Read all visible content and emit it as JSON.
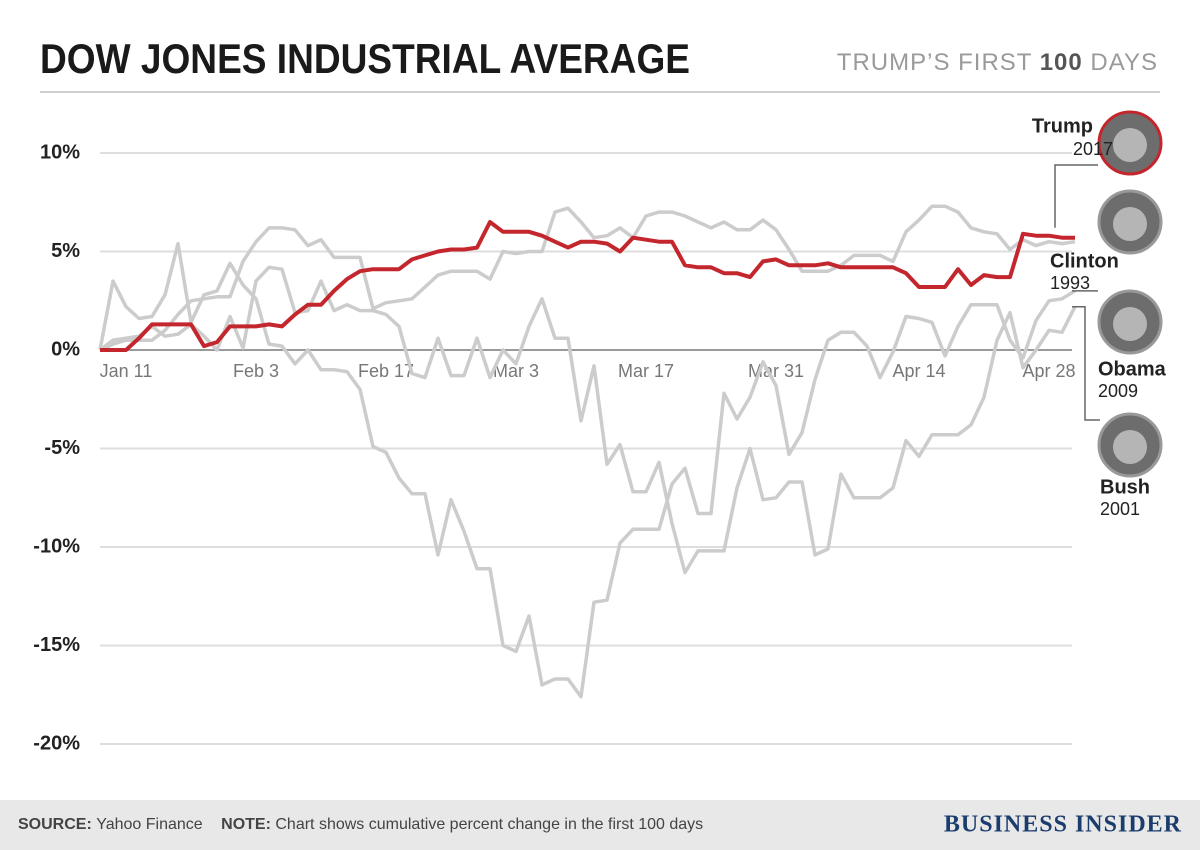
{
  "chart_data": {
    "type": "line",
    "title": "DOW JONES INDUSTRIAL AVERAGE",
    "subtitle": [
      "TRUMP’S FIRST",
      "100",
      "DAYS"
    ],
    "categories": [
      null,
      null,
      "Jan 11",
      null,
      null,
      null,
      null,
      null,
      null,
      null,
      null,
      null,
      "Feb 3",
      null,
      null,
      null,
      null,
      null,
      null,
      null,
      null,
      null,
      "Feb 17",
      null,
      null,
      null,
      null,
      null,
      null,
      null,
      null,
      null,
      "Mar 3",
      null,
      null,
      null,
      null,
      null,
      null,
      null,
      null,
      null,
      "Mar 17",
      null,
      null,
      null,
      null,
      null,
      null,
      null,
      null,
      null,
      "Mar 31",
      null,
      null,
      null,
      null,
      null,
      null,
      null,
      null,
      null,
      null,
      "Apr 14",
      null,
      null,
      null,
      null,
      null,
      null,
      null,
      null,
      null,
      "Apr 28",
      null,
      null
    ],
    "ylim": [
      -21,
      12
    ],
    "yticks": [
      {
        "value": -20,
        "label": "-20%"
      },
      {
        "value": -15,
        "label": "-15%"
      },
      {
        "value": -10,
        "label": "-10%"
      },
      {
        "value": -5,
        "label": "-5%"
      },
      {
        "value": 0,
        "label": "0%"
      },
      {
        "value": 5,
        "label": "5%"
      },
      {
        "value": 10,
        "label": "10%"
      }
    ],
    "grid": true,
    "series": [
      {
        "name": "Clinton",
        "year": "1993",
        "color": "#cccccc",
        "values": [
          0,
          0.3,
          0.5,
          0.5,
          0.5,
          1.0,
          1.8,
          2.5,
          2.6,
          2.7,
          2.7,
          4.5,
          5.5,
          6.2,
          6.2,
          6.1,
          5.3,
          5.6,
          4.7,
          4.7,
          4.7,
          2.1,
          2.4,
          2.5,
          2.6,
          3.2,
          3.8,
          4.0,
          4.0,
          4.0,
          3.6,
          5.0,
          4.9,
          5.0,
          5.0,
          7.0,
          7.2,
          6.5,
          5.7,
          5.8,
          6.2,
          5.7,
          6.8,
          7.0,
          7.0,
          6.8,
          6.5,
          6.2,
          6.5,
          6.1,
          6.1,
          6.6,
          6.1,
          5.1,
          4.0,
          4.0,
          4.0,
          4.3,
          4.8,
          4.8,
          4.8,
          4.5,
          6.0,
          6.6,
          7.3,
          7.3,
          7.0,
          6.2,
          6.0,
          5.9,
          5.1,
          5.6,
          5.3,
          5.5,
          5.4,
          5.5
        ]
      },
      {
        "name": "Obama",
        "year": "2009",
        "color": "#cccccc",
        "values": [
          0,
          3.5,
          2.2,
          1.6,
          1.7,
          2.8,
          5.4,
          1.4,
          2.8,
          3.0,
          4.4,
          3.3,
          2.6,
          0.3,
          0.2,
          -0.7,
          0,
          -1.0,
          -1.0,
          -1.1,
          -2,
          -4.9,
          -5.2,
          -6.5,
          -7.3,
          -7.3,
          -10.4,
          -7.6,
          -9.2,
          -11.1,
          -11.1,
          -15.0,
          -15.3,
          -13.5,
          -17.0,
          -16.7,
          -16.7,
          -17.6,
          -12.8,
          -12.7,
          -9.8,
          -9.1,
          -9.1,
          -9.1,
          -6.8,
          -6.0,
          -8.3,
          -8.3,
          -2.2,
          -3.5,
          -2.4,
          -0.6,
          -1.8,
          -5.3,
          -4.2,
          -1.5,
          0.5,
          0.9,
          0.9,
          0.2,
          -1.4,
          -0.1,
          1.7,
          1.6,
          1.4,
          -0.3,
          1.2,
          2.3,
          2.3,
          2.3,
          0.5,
          -0.4,
          1.5,
          2.5,
          2.6,
          3.0
        ]
      },
      {
        "name": "Bush",
        "year": "2001",
        "color": "#cccccc",
        "values": [
          0,
          0.5,
          0.6,
          0.7,
          1.2,
          0.7,
          0.8,
          1.3,
          0.7,
          0.0,
          1.7,
          0.1,
          3.5,
          4.2,
          4.1,
          1.9,
          2.0,
          3.5,
          2.0,
          2.3,
          2.0,
          2.0,
          1.8,
          1.2,
          -1.2,
          -1.4,
          0.6,
          -1.3,
          -1.3,
          0.6,
          -1.4,
          0.0,
          -0.7,
          1.2,
          2.6,
          0.6,
          0.6,
          -3.6,
          -0.8,
          -5.8,
          -4.8,
          -7.2,
          -7.2,
          -5.7,
          -8.8,
          -11.3,
          -10.2,
          -10.2,
          -10.2,
          -7.0,
          -5.0,
          -7.6,
          -7.5,
          -6.7,
          -6.7,
          -10.4,
          -10.1,
          -6.3,
          -7.5,
          -7.5,
          -7.5,
          -7.0,
          -4.6,
          -5.4,
          -4.3,
          -4.3,
          -4.3,
          -3.8,
          -2.4,
          0.5,
          1.9,
          -0.9,
          0.0,
          1.0,
          0.9,
          2.2
        ]
      },
      {
        "name": "Trump",
        "year": "2017",
        "color": "#c4262e",
        "values": [
          0,
          0,
          0,
          0.6,
          1.3,
          1.3,
          1.3,
          1.3,
          0.2,
          0.4,
          1.2,
          1.2,
          1.2,
          1.3,
          1.2,
          1.8,
          2.3,
          2.3,
          3.0,
          3.6,
          4.0,
          4.1,
          4.1,
          4.1,
          4.6,
          4.8,
          5.0,
          5.1,
          5.1,
          5.2,
          6.5,
          6.0,
          6.0,
          6.0,
          5.8,
          5.5,
          5.2,
          5.5,
          5.5,
          5.4,
          5.0,
          5.7,
          5.6,
          5.5,
          5.5,
          4.3,
          4.2,
          4.2,
          3.9,
          3.9,
          3.7,
          4.5,
          4.6,
          4.3,
          4.3,
          4.3,
          4.4,
          4.2,
          4.2,
          4.2,
          4.2,
          4.2,
          3.9,
          3.2,
          3.2,
          3.2,
          4.1,
          3.3,
          3.8,
          3.7,
          3.7,
          5.9,
          5.8,
          5.8,
          5.7,
          5.7
        ]
      }
    ]
  },
  "footer": {
    "source_label": "SOURCE:",
    "source": "Yahoo Finance",
    "note_label": "NOTE:",
    "note": "Chart shows cumulative percent change in the first 100 days",
    "brand": "BUSINESS INSIDER"
  }
}
